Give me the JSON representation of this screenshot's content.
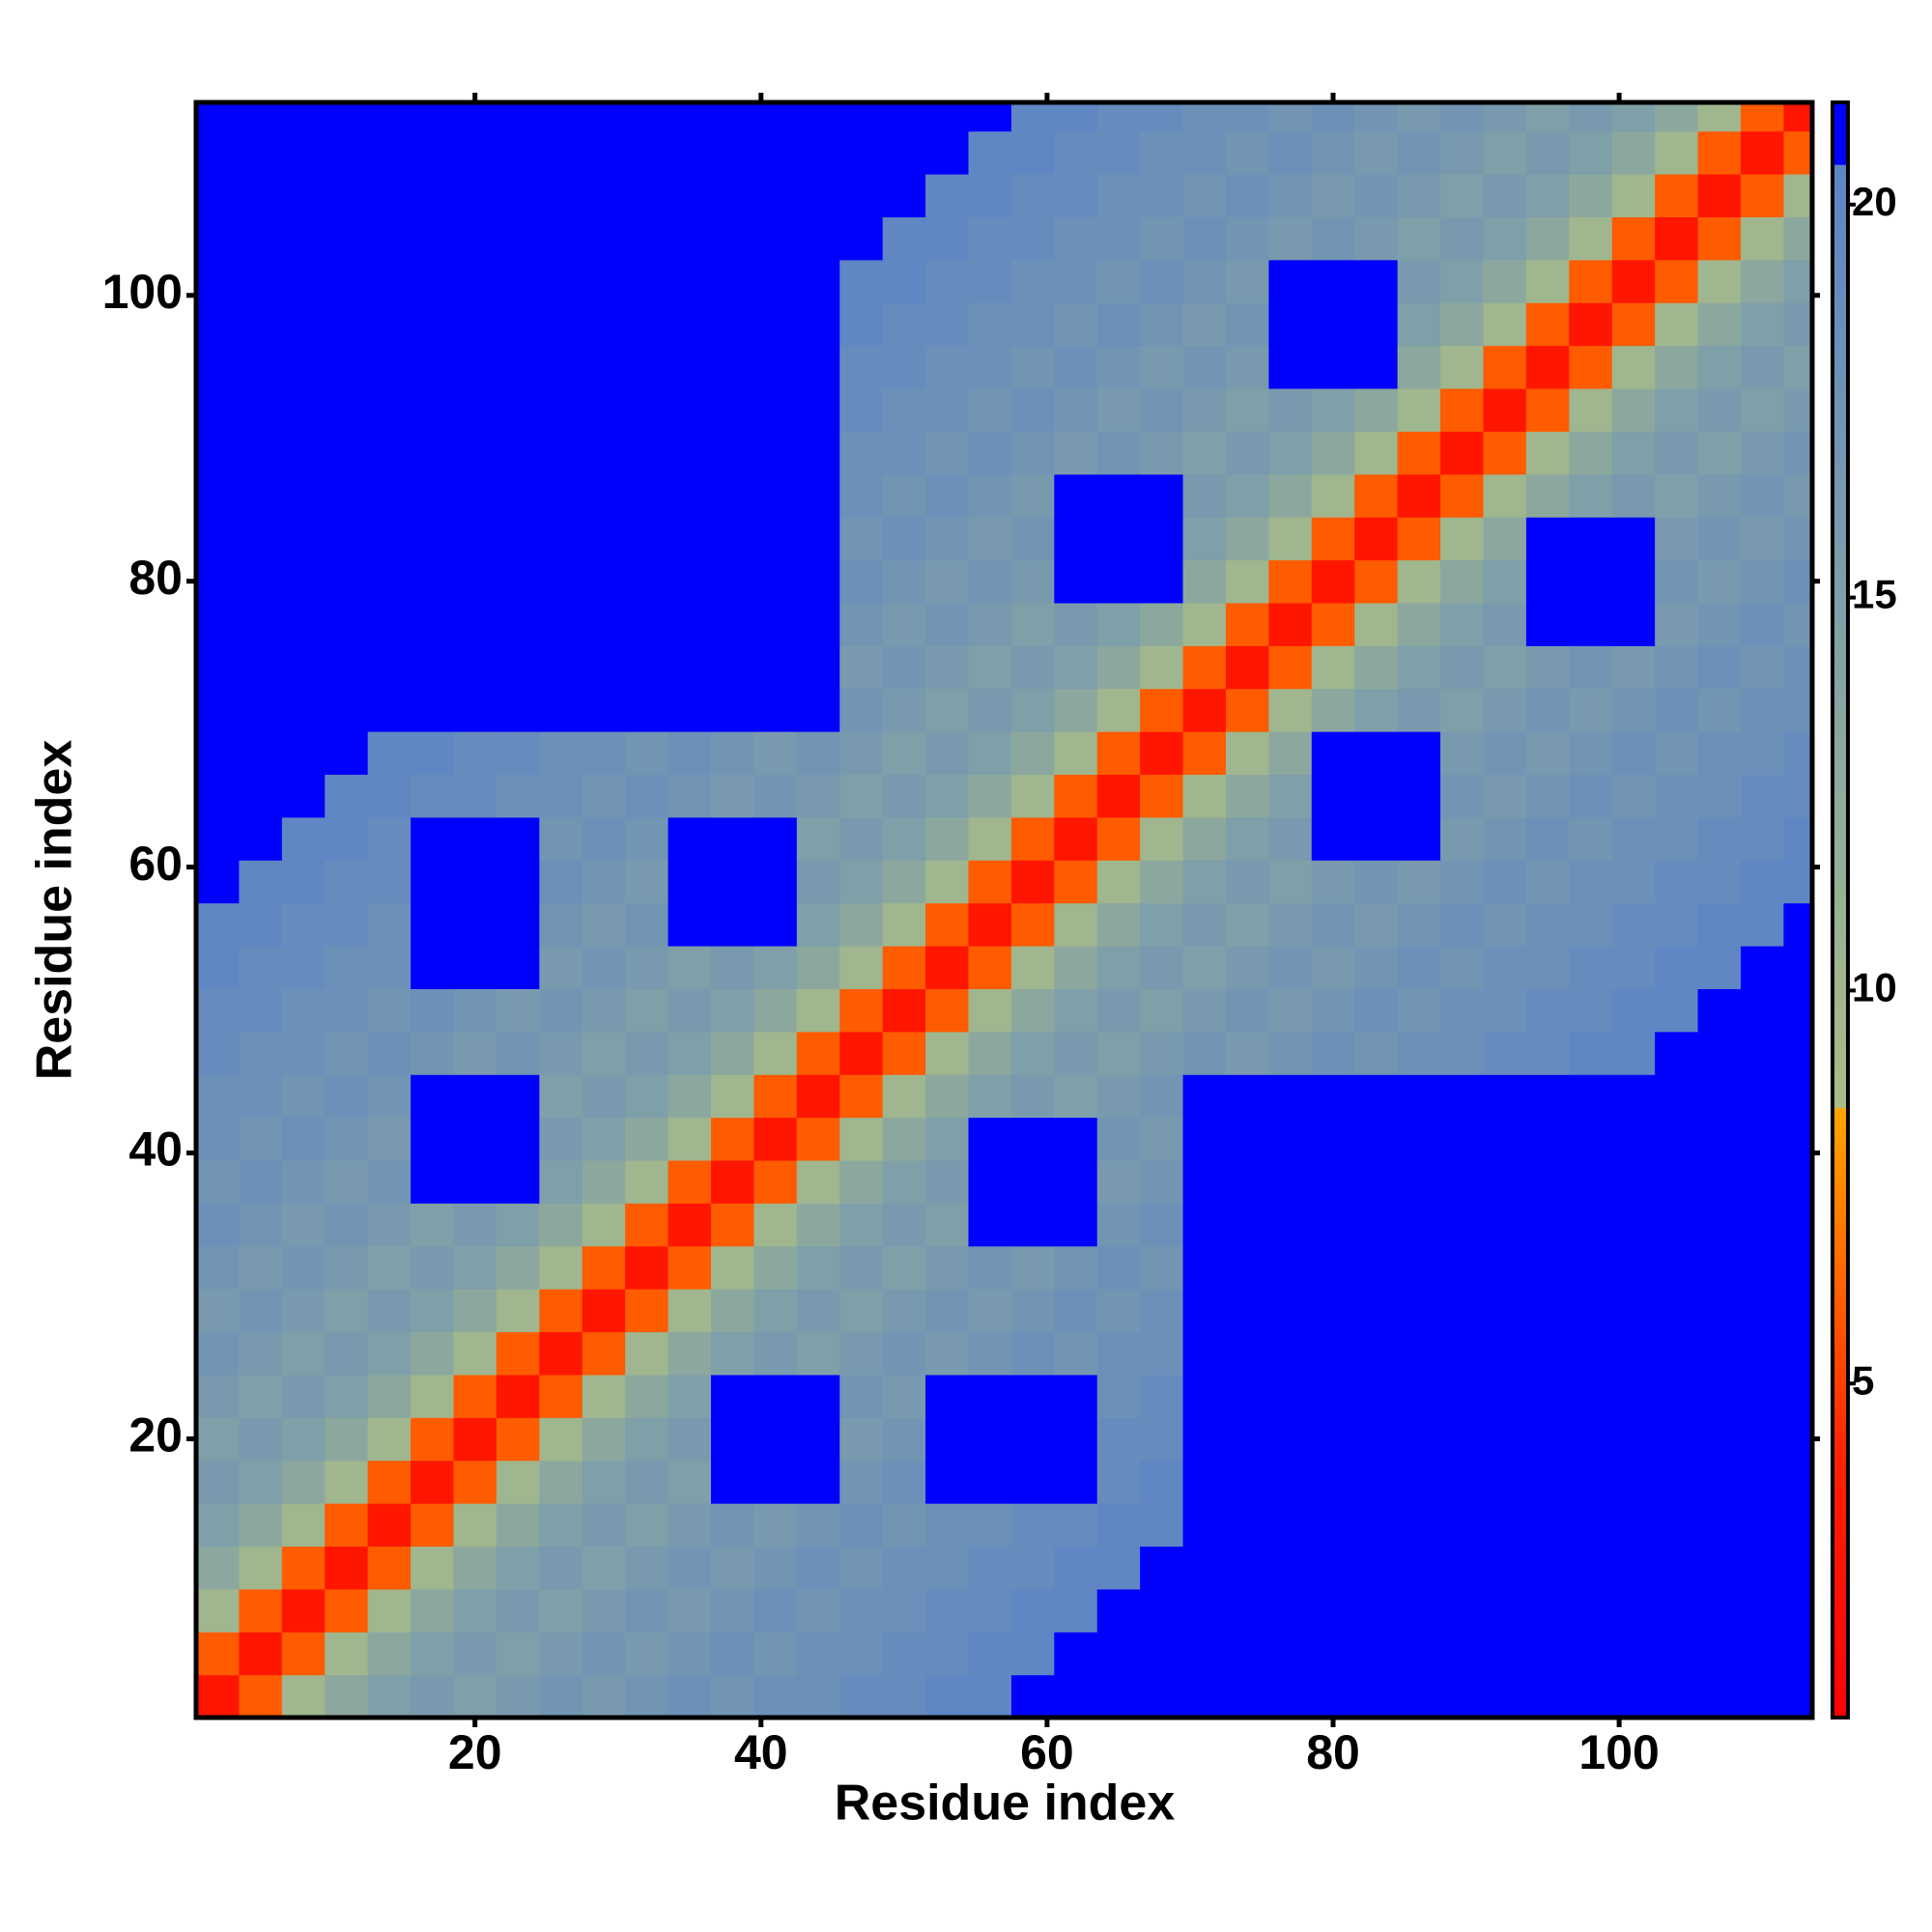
{
  "chart_data": {
    "type": "heatmap",
    "x_label": "Residue index",
    "y_label": "Residue index",
    "xlim": [
      0.5,
      113.5
    ],
    "ylim": [
      0.5,
      113.5
    ],
    "xticks": [
      20,
      40,
      60,
      80,
      100
    ],
    "yticks": [
      20,
      40,
      60,
      80,
      100
    ],
    "zlim": [
      0.75,
      21.3
    ],
    "zticks": [
      5,
      10,
      15,
      20
    ],
    "colorscale": [
      [
        0.75,
        "#ff0000"
      ],
      [
        4,
        "#ff2000"
      ],
      [
        8.5,
        "#ffa500"
      ],
      [
        8.51,
        "#a9bd86"
      ],
      [
        20.5,
        "#5c85c6"
      ],
      [
        20.51,
        "#0000ff"
      ],
      [
        21.3,
        "#0000ff"
      ]
    ],
    "x": [
      2,
      5,
      8,
      11,
      14,
      17,
      20,
      23,
      26,
      29,
      32,
      35,
      38,
      41,
      44,
      47,
      50,
      53,
      56,
      59,
      62,
      65,
      68,
      71,
      74,
      77,
      80,
      83,
      86,
      89,
      92,
      95,
      98,
      101,
      104,
      107,
      110,
      113
    ],
    "y": [
      2,
      5,
      8,
      11,
      14,
      17,
      20,
      23,
      26,
      29,
      32,
      35,
      38,
      41,
      44,
      47,
      50,
      53,
      56,
      59,
      62,
      65,
      68,
      71,
      74,
      77,
      80,
      83,
      86,
      89,
      92,
      95,
      98,
      101,
      104,
      107,
      110,
      113
    ],
    "z": [
      [
        3,
        6,
        10,
        13,
        15,
        16,
        15,
        16,
        17,
        16,
        17,
        18,
        17,
        18,
        18,
        19,
        19,
        20,
        20,
        21,
        22,
        22,
        22,
        22,
        22,
        22,
        22,
        22,
        22,
        22,
        22,
        22,
        22,
        22,
        22,
        22,
        22,
        22
      ],
      [
        6,
        3,
        6,
        10,
        13,
        15,
        16,
        15,
        16,
        17,
        16,
        17,
        18,
        17,
        18,
        18,
        19,
        19,
        20,
        20,
        21,
        22,
        22,
        22,
        22,
        22,
        22,
        22,
        22,
        22,
        22,
        22,
        22,
        22,
        22,
        22,
        22,
        22
      ],
      [
        10,
        6,
        3,
        6,
        10,
        13,
        15,
        16,
        15,
        16,
        17,
        16,
        17,
        18,
        17,
        18,
        18,
        19,
        19,
        20,
        20,
        21,
        22,
        22,
        22,
        22,
        22,
        22,
        22,
        22,
        22,
        22,
        22,
        22,
        22,
        22,
        22,
        22
      ],
      [
        13,
        10,
        6,
        3,
        6,
        10,
        13,
        15,
        16,
        15,
        16,
        17,
        16,
        17,
        18,
        17,
        18,
        18,
        19,
        19,
        20,
        20,
        21,
        22,
        22,
        22,
        22,
        22,
        22,
        22,
        22,
        22,
        22,
        22,
        22,
        22,
        22,
        22
      ],
      [
        15,
        13,
        10,
        6,
        3,
        6,
        10,
        13,
        15,
        16,
        15,
        16,
        17,
        16,
        17,
        18,
        17,
        18,
        18,
        19,
        19,
        20,
        20,
        22,
        22,
        22,
        22,
        22,
        22,
        22,
        22,
        22,
        22,
        22,
        22,
        22,
        22,
        22
      ],
      [
        16,
        15,
        13,
        10,
        6,
        3,
        6,
        10,
        13,
        15,
        16,
        15,
        22,
        22,
        22,
        17,
        18,
        22,
        22,
        22,
        22,
        19,
        20,
        22,
        22,
        22,
        22,
        22,
        22,
        22,
        22,
        22,
        22,
        22,
        22,
        22,
        22,
        22
      ],
      [
        15,
        16,
        15,
        13,
        10,
        6,
        3,
        6,
        10,
        13,
        15,
        16,
        22,
        22,
        22,
        16,
        17,
        22,
        22,
        22,
        22,
        19,
        19,
        22,
        22,
        22,
        22,
        22,
        22,
        22,
        22,
        22,
        22,
        22,
        22,
        22,
        22,
        22
      ],
      [
        16,
        15,
        16,
        15,
        13,
        10,
        6,
        3,
        6,
        10,
        13,
        15,
        22,
        22,
        22,
        17,
        16,
        22,
        22,
        22,
        22,
        18,
        19,
        22,
        22,
        22,
        22,
        22,
        22,
        22,
        22,
        22,
        22,
        22,
        22,
        22,
        22,
        22
      ],
      [
        17,
        16,
        15,
        16,
        15,
        13,
        10,
        6,
        3,
        6,
        10,
        13,
        15,
        16,
        15,
        16,
        17,
        16,
        17,
        18,
        17,
        18,
        18,
        22,
        22,
        22,
        22,
        22,
        22,
        22,
        22,
        22,
        22,
        22,
        22,
        22,
        22,
        22
      ],
      [
        16,
        17,
        16,
        15,
        16,
        15,
        13,
        10,
        6,
        3,
        6,
        10,
        13,
        15,
        16,
        15,
        16,
        17,
        16,
        17,
        18,
        17,
        18,
        22,
        22,
        22,
        22,
        22,
        22,
        22,
        22,
        22,
        22,
        22,
        22,
        22,
        22,
        22
      ],
      [
        17,
        16,
        17,
        16,
        15,
        16,
        15,
        13,
        10,
        6,
        3,
        6,
        10,
        13,
        15,
        16,
        15,
        16,
        17,
        16,
        17,
        18,
        17,
        22,
        22,
        22,
        22,
        22,
        22,
        22,
        22,
        22,
        22,
        22,
        22,
        22,
        22,
        22
      ],
      [
        18,
        17,
        16,
        17,
        16,
        15,
        16,
        15,
        13,
        10,
        6,
        3,
        6,
        10,
        13,
        15,
        16,
        15,
        22,
        22,
        22,
        17,
        18,
        22,
        22,
        22,
        22,
        22,
        22,
        22,
        22,
        22,
        22,
        22,
        22,
        22,
        22,
        22
      ],
      [
        17,
        18,
        17,
        16,
        17,
        22,
        22,
        22,
        15,
        13,
        10,
        6,
        3,
        6,
        10,
        13,
        15,
        16,
        22,
        22,
        22,
        16,
        17,
        22,
        22,
        22,
        22,
        22,
        22,
        22,
        22,
        22,
        22,
        22,
        22,
        22,
        22,
        22
      ],
      [
        18,
        17,
        18,
        17,
        16,
        22,
        22,
        22,
        16,
        15,
        13,
        10,
        6,
        3,
        6,
        10,
        13,
        15,
        22,
        22,
        22,
        17,
        16,
        22,
        22,
        22,
        22,
        22,
        22,
        22,
        22,
        22,
        22,
        22,
        22,
        22,
        22,
        22
      ],
      [
        18,
        18,
        17,
        18,
        17,
        22,
        22,
        22,
        15,
        16,
        15,
        13,
        10,
        6,
        3,
        6,
        10,
        13,
        15,
        16,
        15,
        16,
        17,
        22,
        22,
        22,
        22,
        22,
        22,
        22,
        22,
        22,
        22,
        22,
        22,
        22,
        22,
        22
      ],
      [
        19,
        18,
        18,
        17,
        18,
        17,
        16,
        17,
        16,
        15,
        16,
        15,
        13,
        10,
        6,
        3,
        6,
        10,
        13,
        15,
        16,
        15,
        16,
        17,
        16,
        17,
        18,
        17,
        18,
        18,
        19,
        19,
        20,
        20,
        21,
        22,
        22,
        22
      ],
      [
        19,
        19,
        18,
        18,
        17,
        18,
        17,
        16,
        17,
        16,
        15,
        16,
        15,
        13,
        10,
        6,
        3,
        6,
        10,
        13,
        15,
        16,
        15,
        16,
        17,
        16,
        17,
        18,
        17,
        18,
        18,
        19,
        19,
        20,
        20,
        21,
        22,
        22
      ],
      [
        20,
        19,
        19,
        18,
        18,
        22,
        22,
        22,
        16,
        17,
        16,
        15,
        16,
        15,
        13,
        10,
        6,
        3,
        6,
        10,
        13,
        15,
        16,
        15,
        16,
        17,
        16,
        17,
        18,
        17,
        18,
        18,
        19,
        19,
        20,
        20,
        21,
        22
      ],
      [
        20,
        20,
        19,
        19,
        18,
        22,
        22,
        22,
        17,
        16,
        17,
        22,
        22,
        22,
        15,
        13,
        10,
        6,
        3,
        6,
        10,
        13,
        15,
        16,
        15,
        16,
        17,
        16,
        17,
        18,
        17,
        18,
        18,
        19,
        19,
        20,
        20,
        21
      ],
      [
        21,
        20,
        20,
        19,
        19,
        22,
        22,
        22,
        18,
        17,
        16,
        22,
        22,
        22,
        16,
        15,
        13,
        10,
        6,
        3,
        6,
        10,
        13,
        15,
        16,
        15,
        16,
        17,
        16,
        17,
        18,
        17,
        18,
        18,
        19,
        19,
        20,
        20
      ],
      [
        22,
        21,
        20,
        20,
        19,
        22,
        22,
        22,
        17,
        18,
        17,
        22,
        22,
        22,
        15,
        16,
        15,
        13,
        10,
        6,
        3,
        6,
        10,
        13,
        15,
        16,
        22,
        22,
        22,
        16,
        17,
        18,
        17,
        18,
        18,
        19,
        19,
        20
      ],
      [
        22,
        22,
        21,
        20,
        20,
        19,
        19,
        18,
        18,
        17,
        18,
        17,
        16,
        17,
        16,
        15,
        16,
        15,
        13,
        10,
        6,
        3,
        6,
        10,
        13,
        15,
        22,
        22,
        22,
        17,
        16,
        17,
        18,
        17,
        18,
        18,
        19,
        19
      ],
      [
        22,
        22,
        22,
        21,
        20,
        20,
        19,
        19,
        18,
        18,
        17,
        18,
        17,
        16,
        17,
        16,
        15,
        16,
        15,
        13,
        10,
        6,
        3,
        6,
        10,
        13,
        22,
        22,
        22,
        16,
        17,
        16,
        17,
        18,
        17,
        18,
        18,
        19
      ],
      [
        22,
        22,
        22,
        22,
        22,
        22,
        22,
        22,
        22,
        22,
        22,
        22,
        22,
        22,
        22,
        17,
        16,
        15,
        16,
        15,
        13,
        10,
        6,
        3,
        6,
        10,
        13,
        15,
        16,
        15,
        16,
        17,
        16,
        17,
        18,
        17,
        18,
        18
      ],
      [
        22,
        22,
        22,
        22,
        22,
        22,
        22,
        22,
        22,
        22,
        22,
        22,
        22,
        22,
        22,
        16,
        17,
        16,
        15,
        16,
        15,
        13,
        10,
        6,
        3,
        6,
        10,
        13,
        15,
        16,
        15,
        16,
        17,
        16,
        17,
        18,
        17,
        18
      ],
      [
        22,
        22,
        22,
        22,
        22,
        22,
        22,
        22,
        22,
        22,
        22,
        22,
        22,
        22,
        22,
        17,
        16,
        17,
        16,
        15,
        16,
        15,
        13,
        10,
        6,
        3,
        6,
        10,
        13,
        15,
        16,
        22,
        22,
        22,
        16,
        17,
        18,
        17
      ],
      [
        22,
        22,
        22,
        22,
        22,
        22,
        22,
        22,
        22,
        22,
        22,
        22,
        22,
        22,
        22,
        18,
        17,
        16,
        17,
        16,
        22,
        22,
        22,
        13,
        10,
        6,
        3,
        6,
        10,
        13,
        15,
        22,
        22,
        22,
        17,
        16,
        17,
        18
      ],
      [
        22,
        22,
        22,
        22,
        22,
        22,
        22,
        22,
        22,
        22,
        22,
        22,
        22,
        22,
        22,
        17,
        18,
        17,
        16,
        17,
        22,
        22,
        22,
        15,
        13,
        10,
        6,
        3,
        6,
        10,
        13,
        22,
        22,
        22,
        16,
        17,
        16,
        17
      ],
      [
        22,
        22,
        22,
        22,
        22,
        22,
        22,
        22,
        22,
        22,
        22,
        22,
        22,
        22,
        22,
        18,
        17,
        18,
        17,
        16,
        22,
        22,
        22,
        16,
        15,
        13,
        10,
        6,
        3,
        6,
        10,
        13,
        15,
        16,
        15,
        16,
        17,
        16
      ],
      [
        22,
        22,
        22,
        22,
        22,
        22,
        22,
        22,
        22,
        22,
        22,
        22,
        22,
        22,
        22,
        18,
        18,
        17,
        18,
        17,
        16,
        17,
        16,
        15,
        16,
        15,
        13,
        10,
        6,
        3,
        6,
        10,
        13,
        15,
        16,
        15,
        16,
        17
      ],
      [
        22,
        22,
        22,
        22,
        22,
        22,
        22,
        22,
        22,
        22,
        22,
        22,
        22,
        22,
        22,
        19,
        18,
        18,
        17,
        18,
        17,
        16,
        17,
        16,
        15,
        16,
        15,
        13,
        10,
        6,
        3,
        6,
        10,
        13,
        15,
        16,
        15,
        16
      ],
      [
        22,
        22,
        22,
        22,
        22,
        22,
        22,
        22,
        22,
        22,
        22,
        22,
        22,
        22,
        22,
        19,
        19,
        18,
        18,
        17,
        18,
        17,
        16,
        17,
        16,
        22,
        22,
        22,
        13,
        10,
        6,
        3,
        6,
        10,
        13,
        15,
        16,
        15
      ],
      [
        22,
        22,
        22,
        22,
        22,
        22,
        22,
        22,
        22,
        22,
        22,
        22,
        22,
        22,
        22,
        20,
        19,
        19,
        18,
        18,
        17,
        18,
        17,
        16,
        17,
        22,
        22,
        22,
        15,
        13,
        10,
        6,
        3,
        6,
        10,
        13,
        15,
        16
      ],
      [
        22,
        22,
        22,
        22,
        22,
        22,
        22,
        22,
        22,
        22,
        22,
        22,
        22,
        22,
        22,
        20,
        20,
        19,
        19,
        18,
        18,
        17,
        18,
        17,
        16,
        22,
        22,
        22,
        16,
        15,
        13,
        10,
        6,
        3,
        6,
        10,
        13,
        15
      ],
      [
        22,
        22,
        22,
        22,
        22,
        22,
        22,
        22,
        22,
        22,
        22,
        22,
        22,
        22,
        22,
        21,
        20,
        20,
        19,
        19,
        18,
        18,
        17,
        18,
        17,
        16,
        17,
        16,
        15,
        16,
        15,
        13,
        10,
        6,
        3,
        6,
        10,
        13
      ],
      [
        22,
        22,
        22,
        22,
        22,
        22,
        22,
        22,
        22,
        22,
        22,
        22,
        22,
        22,
        22,
        22,
        21,
        20,
        20,
        19,
        19,
        18,
        18,
        17,
        18,
        17,
        16,
        17,
        16,
        15,
        16,
        15,
        13,
        10,
        6,
        3,
        6,
        10
      ],
      [
        22,
        22,
        22,
        22,
        22,
        22,
        22,
        22,
        22,
        22,
        22,
        22,
        22,
        22,
        22,
        22,
        22,
        21,
        20,
        20,
        19,
        19,
        18,
        18,
        17,
        18,
        17,
        16,
        17,
        16,
        15,
        16,
        15,
        13,
        10,
        6,
        3,
        6
      ],
      [
        22,
        22,
        22,
        22,
        22,
        22,
        22,
        22,
        22,
        22,
        22,
        22,
        22,
        22,
        22,
        22,
        22,
        22,
        21,
        20,
        20,
        19,
        19,
        18,
        18,
        17,
        18,
        17,
        16,
        17,
        16,
        15,
        16,
        15,
        13,
        10,
        6,
        3
      ]
    ]
  }
}
